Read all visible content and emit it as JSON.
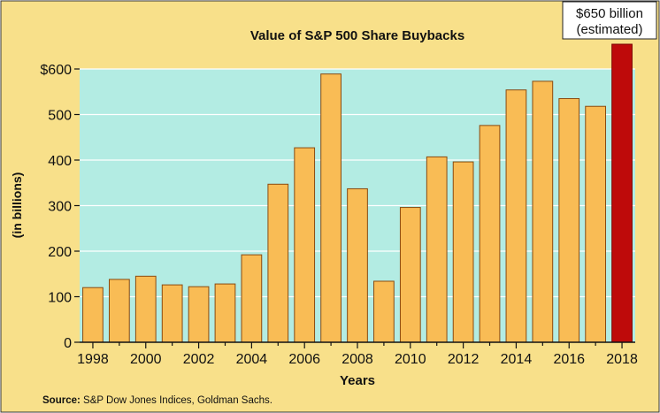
{
  "chart_data": {
    "type": "bar",
    "title": "Value of S&P 500 Share Buybacks",
    "xlabel": "Years",
    "ylabel": "(in billions)",
    "ylim": [
      0,
      600
    ],
    "yticks": [
      "$600",
      "500",
      "400",
      "300",
      "200",
      "100",
      "0"
    ],
    "xticks": [
      "1998",
      "2000",
      "2002",
      "2004",
      "2006",
      "2008",
      "2010",
      "2012",
      "2014",
      "2016",
      "2018"
    ],
    "categories": [
      "1998",
      "1999",
      "2000",
      "2001",
      "2002",
      "2003",
      "2004",
      "2005",
      "2006",
      "2007",
      "2008",
      "2009",
      "2010",
      "2011",
      "2012",
      "2013",
      "2014",
      "2015",
      "2016",
      "2017",
      "2018"
    ],
    "values": [
      120,
      138,
      145,
      126,
      122,
      128,
      192,
      347,
      427,
      589,
      337,
      134,
      296,
      407,
      396,
      476,
      554,
      573,
      535,
      518,
      650
    ],
    "highlight": {
      "category": "2018",
      "label_line1": "$650 billion",
      "label_line2": "(estimated)"
    },
    "source_label": "Source:",
    "source_text": "S&P Dow Jones Indices, Goldman Sachs.",
    "colors": {
      "background": "#f8e08a",
      "plot_area": "#b3ece3",
      "bar": "#f9bc55",
      "bar_highlight": "#be0a0a",
      "bar_stroke": "#8a4a10",
      "grid": "#ffffff",
      "text": "#111111"
    }
  }
}
